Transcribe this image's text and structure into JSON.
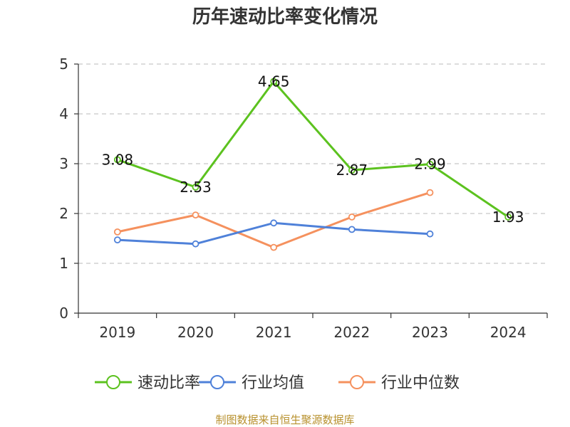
{
  "chart_data": {
    "type": "line",
    "title": "历年速动比率变化情况",
    "categories": [
      "2019",
      "2020",
      "2021",
      "2022",
      "2023",
      "2024"
    ],
    "ylim": [
      0,
      5
    ],
    "yticks": [
      "0",
      "1",
      "2",
      "3",
      "4",
      "5"
    ],
    "grid": true,
    "legend_placement": "bottom",
    "series": [
      {
        "name": "速动比率",
        "color": "#5cc21f",
        "values": [
          3.08,
          2.53,
          4.65,
          2.87,
          2.99,
          1.93
        ],
        "labels": [
          "3.08",
          "2.53",
          "4.65",
          "2.87",
          "2.99",
          "1.93"
        ]
      },
      {
        "name": "行业均值",
        "color": "#4f81d9",
        "values": [
          1.47,
          1.39,
          1.81,
          1.68,
          1.59,
          null
        ]
      },
      {
        "name": "行业中位数",
        "color": "#f5915e",
        "values": [
          1.63,
          1.97,
          1.32,
          1.93,
          2.42,
          null
        ]
      }
    ],
    "source": "制图数据来自恒生聚源数据库",
    "source_color": "#b8912e"
  }
}
